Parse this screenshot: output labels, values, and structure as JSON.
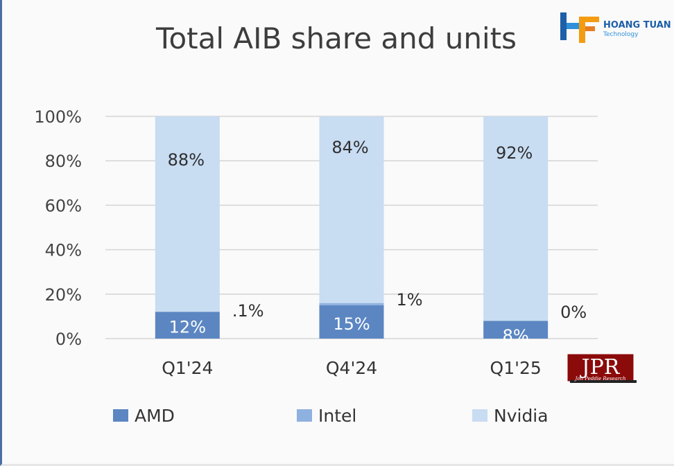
{
  "chart_data": {
    "type": "bar",
    "stacked": true,
    "title": "Total AIB share and units",
    "categories": [
      "Q1'24",
      "Q4'24",
      "Q1'25"
    ],
    "series": [
      {
        "name": "AMD",
        "color": "#5b86c2",
        "values": [
          12,
          15,
          8
        ],
        "labels": [
          "12%",
          "15%",
          "8%"
        ]
      },
      {
        "name": "Intel",
        "color": "#8fb1df",
        "values": [
          0.1,
          1,
          0
        ],
        "labels": [
          ".1%",
          "1%",
          "0%"
        ]
      },
      {
        "name": "Nvidia",
        "color": "#c8dcf2",
        "values": [
          88,
          84,
          92
        ],
        "labels": [
          "88%",
          "84%",
          "92%"
        ]
      }
    ],
    "y_ticks": [
      "0%",
      "20%",
      "40%",
      "60%",
      "80%",
      "100%"
    ],
    "ylim": [
      0,
      100
    ],
    "grid": true,
    "legend": "bottom"
  },
  "logo": {
    "name": "HOANG TUAN",
    "sub": "Technology",
    "icon": "hoang-tuan-logo-icon"
  },
  "watermark": {
    "name": "JPR",
    "sub": "Jon Peddie Research"
  }
}
